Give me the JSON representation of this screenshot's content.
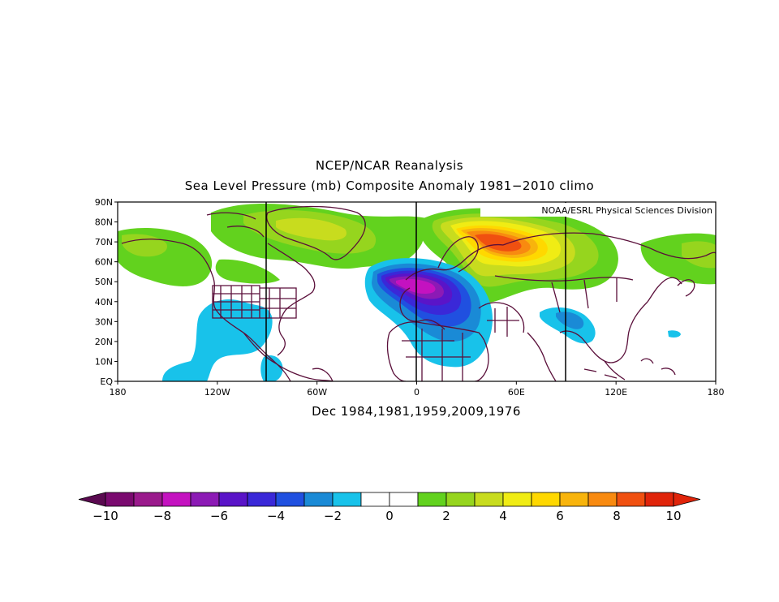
{
  "header": {
    "title_line1": "NCEP/NCAR Reanalysis",
    "title_line2": "Sea Level Pressure (mb) Composite Anomaly 1981−2010 climo"
  },
  "credit": "NOAA/ESRL Physical Sciences Division",
  "subtitle": "Dec 1984,1981,1959,2009,1976",
  "map": {
    "lon_labels": [
      "180",
      "120W",
      "60W",
      "0",
      "60E",
      "120E",
      "180"
    ],
    "lat_labels": [
      "EQ",
      "10N",
      "20N",
      "30N",
      "40N",
      "50N",
      "60N",
      "70N",
      "80N",
      "90N"
    ],
    "meridian_lines_lon": [
      -90,
      0,
      90
    ]
  },
  "colorbar": {
    "tick_labels": [
      "−10",
      "−8",
      "−6",
      "−4",
      "−2",
      "0",
      "2",
      "4",
      "6",
      "8",
      "10"
    ],
    "colors": [
      "#7a0a6f",
      "#9a1a8c",
      "#c412c0",
      "#8c1ab5",
      "#5a14c8",
      "#3a28d8",
      "#2050e0",
      "#1a8ad6",
      "#18c2ea",
      "#ffffff",
      "#ffffff",
      "#62d21e",
      "#96d51e",
      "#c8dc1e",
      "#f0ec14",
      "#ffd800",
      "#f8b40c",
      "#f88a10",
      "#f05010",
      "#e0240a"
    ],
    "min_color": "#5a0a50",
    "max_color": "#e0240a"
  }
}
